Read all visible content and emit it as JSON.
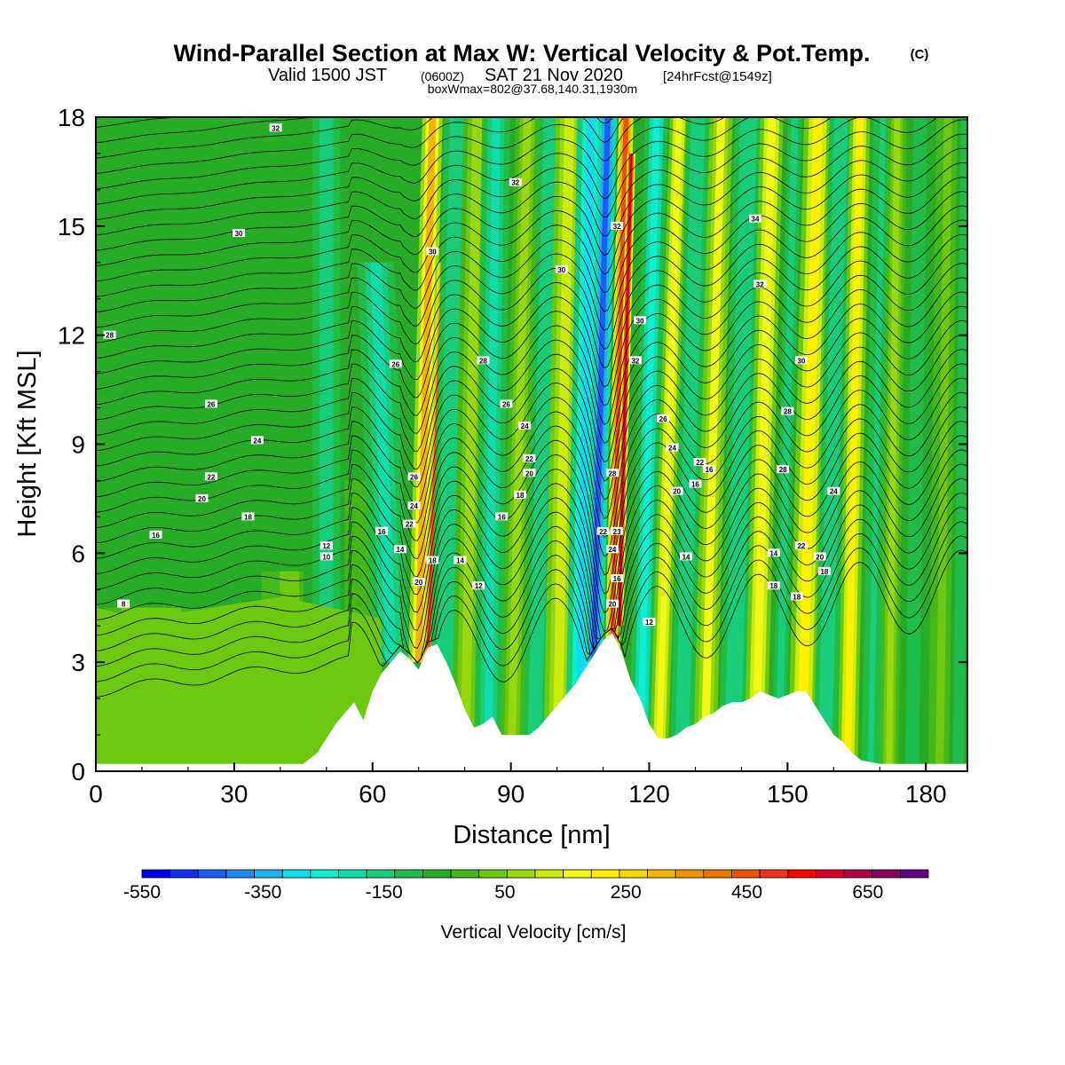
{
  "chart_data": {
    "type": "heatmap",
    "title": "Wind-Parallel Section at Max W: Vertical Velocity & Pot.Temp.",
    "title_mark": "(C)",
    "subtitle": {
      "valid": "Valid 1500 JST",
      "zulu": "(0600Z)",
      "date": "SAT 21 Nov 2020",
      "fcst": "[24hrFcst@1549z]"
    },
    "box_info": "boxWmax=802@37.68,140.31,1930m",
    "xlabel": "Distance [nm]",
    "ylabel": "Height [Kft MSL]",
    "xlim": [
      0,
      189
    ],
    "ylim": [
      0,
      18
    ],
    "x_ticks": [
      "0",
      "30",
      "60",
      "90",
      "120",
      "150",
      "180"
    ],
    "y_ticks": [
      "0",
      "3",
      "6",
      "9",
      "12",
      "15",
      "18"
    ],
    "colorbar": {
      "label": "Vertical Velocity [cm/s]",
      "tick_labels": [
        "-550",
        "-350",
        "-150",
        "50",
        "250",
        "450",
        "650"
      ],
      "range": [
        -550,
        750
      ],
      "step": 50,
      "colors": [
        "#0000e8",
        "#1030f0",
        "#1a5ef5",
        "#1f88f5",
        "#1fb0f0",
        "#10dcec",
        "#10eed0",
        "#10dcaa",
        "#18cc7a",
        "#20bc48",
        "#28ac28",
        "#44b818",
        "#6cc810",
        "#98d810",
        "#ccec10",
        "#f0f818",
        "#fff000",
        "#f8d400",
        "#f4b400",
        "#f09400",
        "#ec7400",
        "#ea5400",
        "#f03020",
        "#f00808",
        "#d8002c",
        "#b00048",
        "#880060",
        "#600088"
      ]
    },
    "theta_contour_labels": [
      "8",
      "10",
      "12",
      "14",
      "16",
      "18",
      "20",
      "22",
      "24",
      "26",
      "28",
      "30",
      "32",
      "34"
    ],
    "ridge_series": {
      "name": "terrain",
      "x": [
        0,
        10,
        20,
        30,
        40,
        45,
        48,
        50,
        52,
        54,
        56,
        58,
        60,
        62,
        64,
        66,
        68,
        70,
        72,
        74,
        76,
        78,
        80,
        82,
        84,
        86,
        88,
        90,
        92,
        94,
        96,
        98,
        100,
        102,
        104,
        106,
        108,
        110,
        112,
        114,
        116,
        118,
        120,
        122,
        124,
        126,
        128,
        130,
        132,
        134,
        136,
        138,
        140,
        142,
        144,
        146,
        148,
        150,
        152,
        154,
        156,
        158,
        160,
        162,
        164,
        166,
        170,
        175,
        180,
        185,
        189
      ],
      "y": [
        0.2,
        0.2,
        0.2,
        0.2,
        0.2,
        0.2,
        0.5,
        0.9,
        1.3,
        1.6,
        1.9,
        1.4,
        2.2,
        2.7,
        3.0,
        3.3,
        3.1,
        2.8,
        3.4,
        3.5,
        3.0,
        2.4,
        1.7,
        1.2,
        1.3,
        1.5,
        1.0,
        1.0,
        1.0,
        1.0,
        1.2,
        1.5,
        1.8,
        2.1,
        2.4,
        2.8,
        3.2,
        3.6,
        3.8,
        3.3,
        2.5,
        2.0,
        1.3,
        0.9,
        0.9,
        1.0,
        1.2,
        1.3,
        1.5,
        1.6,
        1.8,
        1.9,
        1.9,
        2.0,
        2.2,
        2.1,
        2.0,
        2.1,
        2.2,
        2.2,
        1.8,
        1.4,
        1.0,
        0.8,
        0.5,
        0.3,
        0.2,
        0.2,
        0.2,
        0.2,
        0.2
      ]
    }
  }
}
